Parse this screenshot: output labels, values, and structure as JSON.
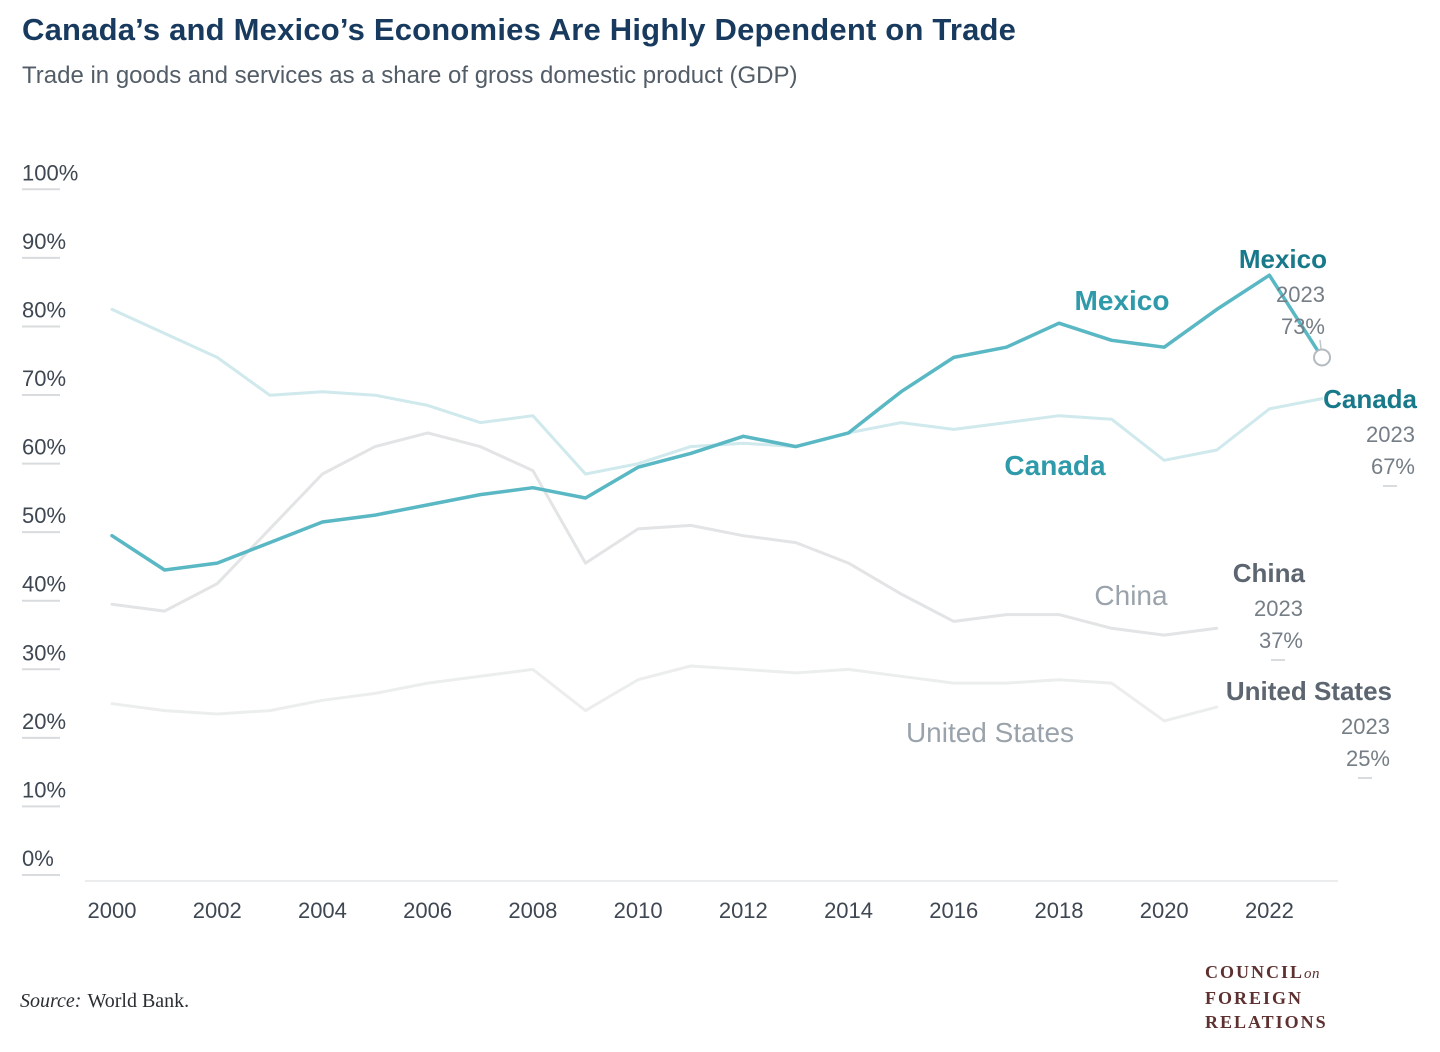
{
  "header": {
    "title": "Canada’s and Mexico’s Economies Are Highly Dependent on Trade",
    "subtitle": "Trade in goods and services as a share of gross domestic product (GDP)"
  },
  "chart_data": {
    "type": "line",
    "title": "Canada’s and Mexico’s Economies Are Highly Dependent on Trade",
    "subtitle": "Trade in goods and services as a share of gross domestic product (GDP)",
    "xlabel": "",
    "ylabel": "",
    "grid": false,
    "ylim": [
      0,
      100
    ],
    "x": [
      2000,
      2001,
      2002,
      2003,
      2004,
      2005,
      2006,
      2007,
      2008,
      2009,
      2010,
      2011,
      2012,
      2013,
      2014,
      2015,
      2016,
      2017,
      2018,
      2019,
      2020,
      2021,
      2022,
      2023
    ],
    "xticks": [
      2000,
      2002,
      2004,
      2006,
      2008,
      2010,
      2012,
      2014,
      2016,
      2018,
      2020,
      2022
    ],
    "yticks": [
      100,
      90,
      80,
      70,
      60,
      50,
      40,
      30,
      20,
      10,
      0
    ],
    "series": [
      {
        "name": "Mexico",
        "color": "#59b8c4",
        "label_color": "#2e9aaa",
        "label_bold": true,
        "width": 3.5,
        "values": [
          47,
          42,
          43,
          46,
          49,
          50,
          51.5,
          53,
          54,
          52.5,
          57,
          59,
          61.5,
          60,
          62,
          68,
          73,
          74.5,
          78,
          75.5,
          74.5,
          80,
          85,
          73
        ]
      },
      {
        "name": "Canada",
        "color": "#cfe9ec",
        "label_color": "#2e9aaa",
        "label_bold": true,
        "width": 3,
        "values": [
          80,
          76.5,
          73,
          67.5,
          68,
          67.5,
          66,
          63.5,
          64.5,
          56,
          57.5,
          60,
          60.5,
          60,
          62,
          63.5,
          62.5,
          63.5,
          64.5,
          64,
          58,
          59.5,
          65.5,
          67
        ]
      },
      {
        "name": "China",
        "color": "#e2e4e5",
        "label_color": "#9aa3ab",
        "label_bold": false,
        "width": 3,
        "values": [
          37,
          36,
          40,
          48,
          56,
          60,
          62,
          60,
          56.5,
          43,
          48,
          48.5,
          47,
          46,
          43,
          38.5,
          34.5,
          35.5,
          35.5,
          33.5,
          32.5,
          33.5,
          35,
          37
        ]
      },
      {
        "name": "United States",
        "color": "#eceeee",
        "label_color": "#9aa3ab",
        "label_bold": false,
        "width": 3,
        "values": [
          22.5,
          21.5,
          21,
          21.5,
          23,
          24,
          25.5,
          26.5,
          27.5,
          21.5,
          26,
          28,
          27.5,
          27,
          27.5,
          26.5,
          25.5,
          25.5,
          26,
          25.5,
          20,
          22,
          24,
          25
        ]
      }
    ],
    "annotations": [
      {
        "series": "Mexico",
        "year": "2023",
        "value": "73%",
        "color": "#17798a"
      },
      {
        "series": "Canada",
        "year": "2023",
        "value": "67%",
        "color": "#17798a"
      },
      {
        "series": "China",
        "year": "2023",
        "value": "37%",
        "color": "#5d6670"
      },
      {
        "series": "United States",
        "year": "2023",
        "value": "25%",
        "color": "#5d6670"
      }
    ],
    "legend_position": "inline-labels"
  },
  "footer": {
    "source_prefix": "Source:",
    "source_text": "World Bank.",
    "logo": {
      "council": "COUNCIL",
      "on": "on",
      "foreign": "FOREIGN",
      "relations": "RELATIONS"
    }
  }
}
